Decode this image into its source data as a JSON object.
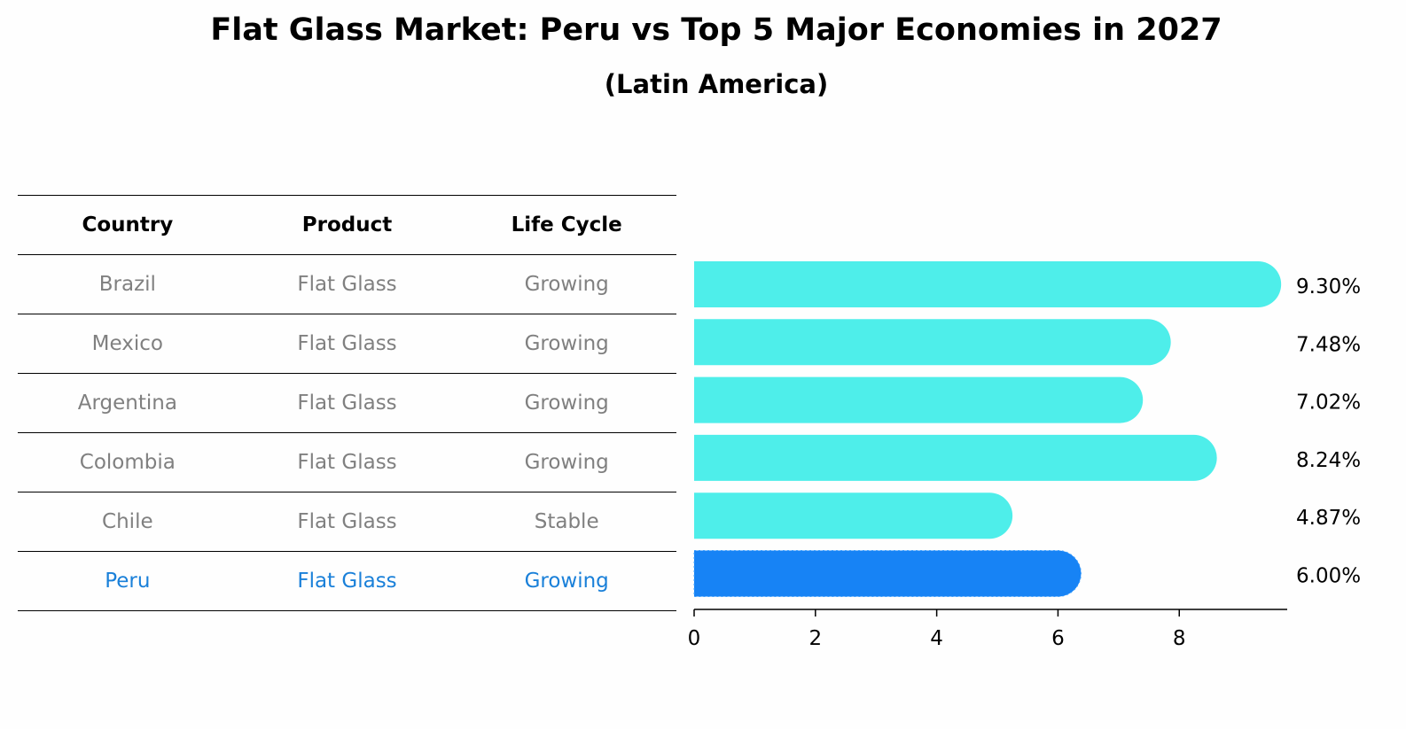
{
  "header": {
    "title": "Flat Glass Market: Peru vs Top 5 Major Economies in 2027",
    "subtitle": "(Latin America)"
  },
  "table": {
    "columns": [
      "Country",
      "Product",
      "Life Cycle"
    ],
    "rows": [
      [
        "Brazil",
        "Flat Glass",
        "Growing"
      ],
      [
        "Mexico",
        "Flat Glass",
        "Growing"
      ],
      [
        "Argentina",
        "Flat Glass",
        "Growing"
      ],
      [
        "Colombia",
        "Flat Glass",
        "Growing"
      ],
      [
        "Chile",
        "Flat Glass",
        "Stable"
      ],
      [
        "Peru",
        "Flat Glass",
        "Growing"
      ]
    ],
    "highlight_row": "Peru"
  },
  "chart_data": {
    "type": "bar",
    "orientation": "horizontal",
    "categories": [
      "Brazil",
      "Mexico",
      "Argentina",
      "Colombia",
      "Chile",
      "Peru"
    ],
    "values": [
      9.3,
      7.48,
      7.02,
      8.24,
      4.87,
      6.0
    ],
    "data_labels": [
      "9.30%",
      "7.48%",
      "7.02%",
      "8.24%",
      "4.87%",
      "6.00%"
    ],
    "xticks": [
      0,
      2,
      4,
      6,
      8
    ],
    "xlim": [
      0,
      9.78
    ],
    "colors": {
      "default": "#4eeeea",
      "highlight": "#1783f5"
    },
    "highlight": "Peru"
  }
}
